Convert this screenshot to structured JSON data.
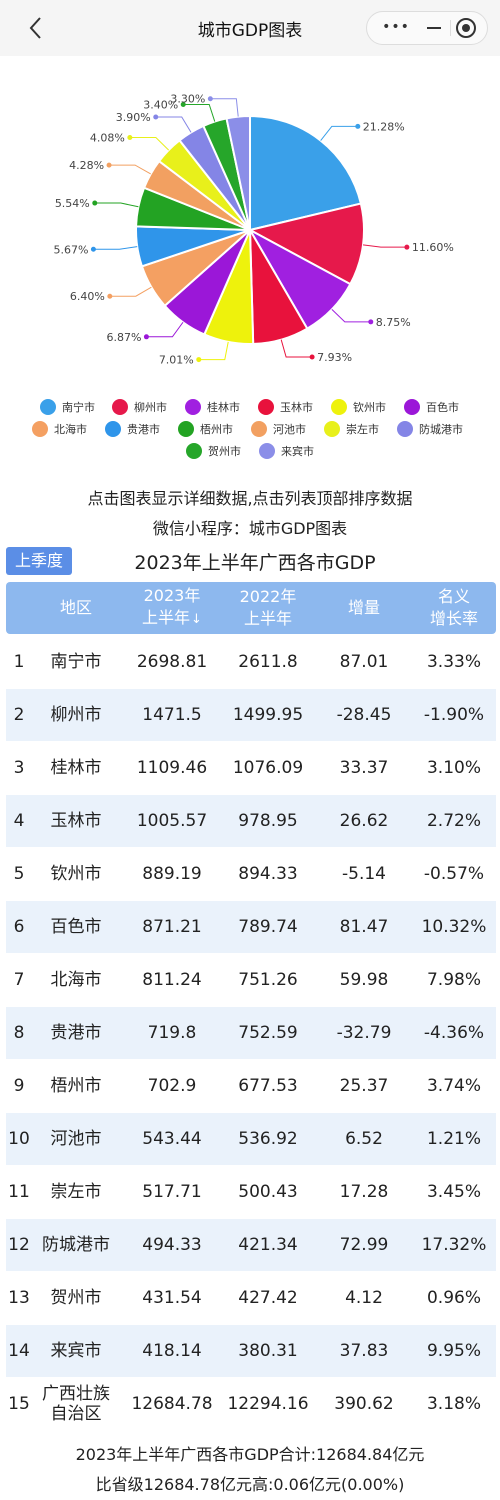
{
  "nav": {
    "back_icon": "back-chevron-icon",
    "title": "城市GDP图表",
    "more_icon": "•••",
    "minimize_icon": "minimize-icon",
    "close_icon": "target-close-icon"
  },
  "chart_data": {
    "type": "pie",
    "title": "",
    "legend_position": "bottom",
    "slices": [
      {
        "name": "南宁市",
        "value": 21.28,
        "label": "21.28%",
        "color": "#3aa0e9"
      },
      {
        "name": "柳州市",
        "value": 11.6,
        "label": "11.60%",
        "color": "#e6194b"
      },
      {
        "name": "桂林市",
        "value": 8.75,
        "label": "8.75%",
        "color": "#a020e0"
      },
      {
        "name": "玉林市",
        "value": 7.93,
        "label": "7.93%",
        "color": "#e8123c"
      },
      {
        "name": "钦州市",
        "value": 7.01,
        "label": "7.01%",
        "color": "#eef20c"
      },
      {
        "name": "百色市",
        "value": 6.87,
        "label": "6.87%",
        "color": "#9b17d8"
      },
      {
        "name": "北海市",
        "value": 6.4,
        "label": "6.40%",
        "color": "#f4a062"
      },
      {
        "name": "贵港市",
        "value": 5.67,
        "label": "5.67%",
        "color": "#2f95ea"
      },
      {
        "name": "梧州市",
        "value": 5.54,
        "label": "5.54%",
        "color": "#23a323"
      },
      {
        "name": "河池市",
        "value": 4.28,
        "label": "4.28%",
        "color": "#f2a061"
      },
      {
        "name": "崇左市",
        "value": 4.08,
        "label": "4.08%",
        "color": "#e8f01b"
      },
      {
        "name": "防城港市",
        "value": 3.9,
        "label": "3.90%",
        "color": "#8485e6"
      },
      {
        "name": "贺州市",
        "value": 3.4,
        "label": "3.40%",
        "color": "#26a62a"
      },
      {
        "name": "来宾市",
        "value": 3.3,
        "label": "3.30%",
        "color": "#8b8ee8"
      }
    ]
  },
  "notes": {
    "line1": "点击图表显示详细数据,点击列表顶部排序数据",
    "line2": "微信小程序：城市GDP图表"
  },
  "season_button": "上季度",
  "table": {
    "title": "2023年上半年广西各市GDP",
    "headers": {
      "region": "地区",
      "v23_l1": "2023年",
      "v23_l2": "上半年",
      "sort_arrow": "↓",
      "v22_l1": "2022年",
      "v22_l2": "上半年",
      "inc": "增量",
      "rate_l1": "名义",
      "rate_l2": "增长率"
    },
    "rows": [
      {
        "rank": "1",
        "region": "南宁市",
        "v23": "2698.81",
        "v22": "2611.8",
        "inc": "87.01",
        "rate": "3.33%"
      },
      {
        "rank": "2",
        "region": "柳州市",
        "v23": "1471.5",
        "v22": "1499.95",
        "inc": "-28.45",
        "rate": "-1.90%"
      },
      {
        "rank": "3",
        "region": "桂林市",
        "v23": "1109.46",
        "v22": "1076.09",
        "inc": "33.37",
        "rate": "3.10%"
      },
      {
        "rank": "4",
        "region": "玉林市",
        "v23": "1005.57",
        "v22": "978.95",
        "inc": "26.62",
        "rate": "2.72%"
      },
      {
        "rank": "5",
        "region": "钦州市",
        "v23": "889.19",
        "v22": "894.33",
        "inc": "-5.14",
        "rate": "-0.57%"
      },
      {
        "rank": "6",
        "region": "百色市",
        "v23": "871.21",
        "v22": "789.74",
        "inc": "81.47",
        "rate": "10.32%"
      },
      {
        "rank": "7",
        "region": "北海市",
        "v23": "811.24",
        "v22": "751.26",
        "inc": "59.98",
        "rate": "7.98%"
      },
      {
        "rank": "8",
        "region": "贵港市",
        "v23": "719.8",
        "v22": "752.59",
        "inc": "-32.79",
        "rate": "-4.36%"
      },
      {
        "rank": "9",
        "region": "梧州市",
        "v23": "702.9",
        "v22": "677.53",
        "inc": "25.37",
        "rate": "3.74%"
      },
      {
        "rank": "10",
        "region": "河池市",
        "v23": "543.44",
        "v22": "536.92",
        "inc": "6.52",
        "rate": "1.21%"
      },
      {
        "rank": "11",
        "region": "崇左市",
        "v23": "517.71",
        "v22": "500.43",
        "inc": "17.28",
        "rate": "3.45%"
      },
      {
        "rank": "12",
        "region": "防城港市",
        "v23": "494.33",
        "v22": "421.34",
        "inc": "72.99",
        "rate": "17.32%"
      },
      {
        "rank": "13",
        "region": "贺州市",
        "v23": "431.54",
        "v22": "427.42",
        "inc": "4.12",
        "rate": "0.96%"
      },
      {
        "rank": "14",
        "region": "来宾市",
        "v23": "418.14",
        "v22": "380.31",
        "inc": "37.83",
        "rate": "9.95%"
      },
      {
        "rank": "15",
        "region": "广西壮族\n自治区",
        "v23": "12684.78",
        "v22": "12294.16",
        "inc": "390.62",
        "rate": "3.18%"
      }
    ]
  },
  "footer": {
    "line1": "2023年上半年广西各市GDP合计:12684.84亿元",
    "line2": "比省级12684.78亿元高:0.06亿元(0.00%)"
  },
  "colors": {
    "header_bg": "#8db8ee",
    "row_alt_bg": "#eaf2fb",
    "button_bg": "#5b8ee6"
  }
}
